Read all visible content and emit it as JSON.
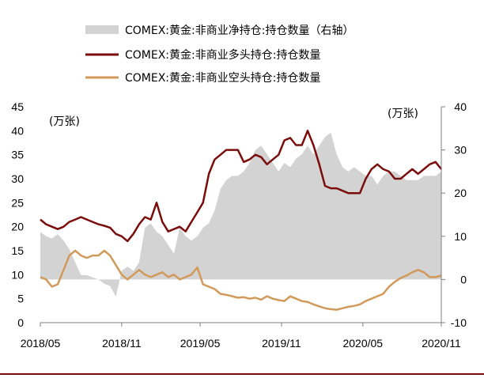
{
  "chart_data": {
    "type": "line",
    "x_ticks": [
      "2018/05",
      "2018/11",
      "2019/05",
      "2019/11",
      "2020/05",
      "2020/11"
    ],
    "left_axis": {
      "unit": "(万张)",
      "ticks": [
        0,
        5,
        10,
        15,
        20,
        25,
        30,
        35,
        40,
        45
      ],
      "ylim": [
        0,
        45
      ]
    },
    "right_axis": {
      "unit": "(万张)",
      "ticks": [
        -10,
        0,
        10,
        20,
        30,
        40
      ],
      "ylim": [
        -10,
        40
      ]
    },
    "x_range": [
      0,
      138
    ],
    "x_tick_positions": [
      0,
      28,
      55,
      83,
      111,
      138
    ],
    "legend": {
      "placement": "top"
    },
    "series": [
      {
        "name": "COMEX:黄金:非商业净持仓:持仓数量（右轴）",
        "kind": "area",
        "axis": "right",
        "color": "#d3d3d3",
        "x": [
          0,
          2,
          4,
          6,
          8,
          10,
          12,
          14,
          16,
          18,
          20,
          22,
          24,
          26,
          28,
          30,
          32,
          34,
          36,
          38,
          40,
          42,
          44,
          46,
          48,
          50,
          52,
          54,
          56,
          58,
          60,
          62,
          64,
          66,
          68,
          70,
          72,
          74,
          76,
          78,
          80,
          82,
          84,
          86,
          88,
          90,
          92,
          94,
          96,
          98,
          100,
          102,
          104,
          106,
          108,
          110,
          112,
          114,
          116,
          118,
          120,
          122,
          124,
          126,
          128,
          130,
          132,
          134,
          136,
          138
        ],
        "values": [
          11,
          10,
          9.5,
          10.5,
          9,
          7,
          4,
          1,
          1,
          0.5,
          0,
          -1,
          -1.5,
          -4,
          2,
          3,
          2,
          4,
          12,
          13,
          11,
          10,
          8,
          6,
          12,
          10,
          9,
          10,
          12,
          13,
          16,
          21,
          23,
          24,
          24,
          25,
          27,
          30,
          31,
          29,
          27,
          25,
          27,
          26,
          28,
          29,
          31,
          29,
          31,
          33,
          34,
          29,
          26,
          25,
          26,
          25,
          24,
          24,
          22,
          24,
          25,
          25,
          24,
          23,
          23,
          23,
          24,
          24,
          24,
          25
        ]
      },
      {
        "name": "COMEX:黄金:非商业多头持仓:持仓数量",
        "kind": "line",
        "axis": "left",
        "color": "#7b0c0c",
        "x": [
          0,
          2,
          4,
          6,
          8,
          10,
          12,
          14,
          16,
          18,
          20,
          22,
          24,
          26,
          28,
          30,
          32,
          34,
          36,
          38,
          40,
          42,
          44,
          46,
          48,
          50,
          52,
          54,
          56,
          58,
          60,
          62,
          64,
          66,
          68,
          70,
          72,
          74,
          76,
          78,
          80,
          82,
          84,
          86,
          88,
          90,
          92,
          94,
          96,
          98,
          100,
          102,
          104,
          106,
          108,
          110,
          112,
          114,
          116,
          118,
          120,
          122,
          124,
          126,
          128,
          130,
          132,
          134,
          136,
          138
        ],
        "values": [
          21.5,
          20.5,
          20,
          19.5,
          20,
          21,
          21.5,
          22,
          21.5,
          21,
          20.5,
          20.2,
          19.8,
          18.5,
          18,
          17,
          18.5,
          20.5,
          22,
          21.5,
          25,
          21,
          19,
          19.5,
          20,
          19,
          21,
          23,
          25,
          31,
          34,
          35,
          36,
          36,
          36,
          33.5,
          34,
          35,
          34.5,
          33,
          34,
          35,
          38,
          38.5,
          37,
          37,
          40,
          37,
          33,
          28.5,
          28,
          28,
          27.5,
          27,
          27,
          27,
          30,
          32,
          33,
          32,
          31.5,
          30,
          30,
          31,
          32,
          31,
          32,
          33,
          33.5,
          32
        ]
      },
      {
        "name": "COMEX:黄金:非商业空头持仓:持仓数量",
        "kind": "line",
        "axis": "left",
        "color": "#d19a5a",
        "x": [
          0,
          2,
          4,
          6,
          8,
          10,
          12,
          14,
          16,
          18,
          20,
          22,
          24,
          26,
          28,
          30,
          32,
          34,
          36,
          38,
          40,
          42,
          44,
          46,
          48,
          50,
          52,
          54,
          56,
          58,
          60,
          62,
          64,
          66,
          68,
          70,
          72,
          74,
          76,
          78,
          80,
          82,
          84,
          86,
          88,
          90,
          92,
          94,
          96,
          98,
          100,
          102,
          104,
          106,
          108,
          110,
          112,
          114,
          116,
          118,
          120,
          122,
          124,
          126,
          128,
          130,
          132,
          134,
          136,
          138
        ],
        "values": [
          9.5,
          9,
          7.5,
          8,
          11,
          14,
          15,
          14,
          13.5,
          14,
          14,
          15,
          14,
          12,
          10,
          9,
          10,
          11,
          10,
          9.5,
          10,
          10.5,
          9.5,
          10,
          9,
          9.5,
          10,
          11.5,
          8,
          7.5,
          7,
          6,
          5.8,
          5.5,
          5.2,
          5.3,
          5,
          5.2,
          4.8,
          5.5,
          5,
          4.7,
          4.5,
          5.5,
          5,
          4.5,
          4.3,
          3.8,
          3.4,
          3,
          2.8,
          2.7,
          3,
          3.3,
          3.5,
          3.8,
          4.5,
          5,
          5.5,
          6,
          7.5,
          8.5,
          9.3,
          9.8,
          10.5,
          11,
          10.5,
          9.5,
          9.5,
          9.8
        ]
      }
    ]
  }
}
